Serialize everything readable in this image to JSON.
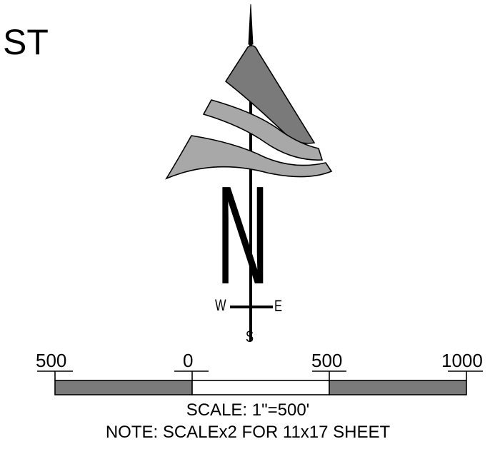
{
  "partial_label": "ST",
  "north_arrow": {
    "north_label": "N",
    "west_label": "W",
    "east_label": "E",
    "south_label": "S",
    "colors": {
      "dark_blade": "#7a7a7a",
      "light_blade": "#a8a8a8",
      "stroke": "#000000"
    }
  },
  "scale_bar": {
    "ticks": [
      "500",
      "0",
      "500",
      "1000"
    ],
    "segments": [
      {
        "from": -500,
        "to": 0,
        "fill": "#7a7a7a"
      },
      {
        "from": 0,
        "to": 500,
        "fill": "#ffffff"
      },
      {
        "from": 500,
        "to": 1000,
        "fill": "#7a7a7a"
      }
    ],
    "scale_text": "SCALE: 1\"=500'",
    "note_text": "NOTE: SCALEx2 FOR 11x17 SHEET"
  }
}
